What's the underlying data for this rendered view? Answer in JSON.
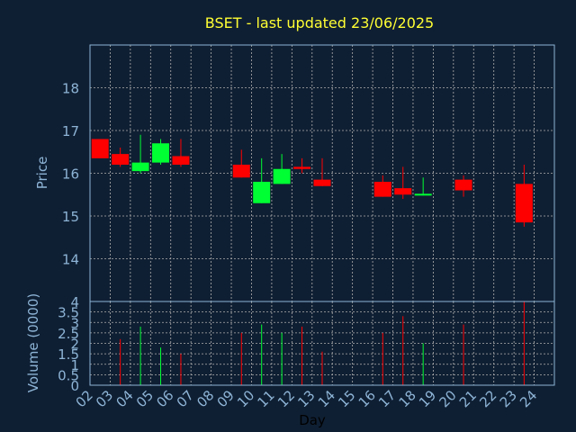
{
  "title": "BSET - last updated 23/06/2025",
  "colors": {
    "background": "#0f1f33",
    "title": "#ffff33",
    "axis_text": "#8db4d6",
    "axis_line": "#8db4d6",
    "grid": "#b0b0b0",
    "up": "#00ff33",
    "down": "#ff0000"
  },
  "chart_data": [
    {
      "type": "candlestick",
      "ylabel": "Price",
      "ylim": [
        13,
        19
      ],
      "yticks": [
        14,
        15,
        16,
        17,
        18
      ],
      "grid": true,
      "candles": [
        {
          "day": "02",
          "open": 16.8,
          "high": 16.8,
          "low": 16.35,
          "close": 16.35
        },
        {
          "day": "03",
          "open": 16.45,
          "high": 16.6,
          "low": 16.15,
          "close": 16.2
        },
        {
          "day": "04",
          "open": 16.05,
          "high": 16.9,
          "low": 16.0,
          "close": 16.25
        },
        {
          "day": "05",
          "open": 16.25,
          "high": 16.8,
          "low": 16.2,
          "close": 16.7
        },
        {
          "day": "06",
          "open": 16.4,
          "high": 16.8,
          "low": 16.15,
          "close": 16.2
        },
        {
          "day": "09",
          "open": 16.2,
          "high": 16.55,
          "low": 15.9,
          "close": 15.9
        },
        {
          "day": "10",
          "open": 15.3,
          "high": 16.35,
          "low": 15.3,
          "close": 15.8
        },
        {
          "day": "11",
          "open": 15.75,
          "high": 16.45,
          "low": 15.75,
          "close": 16.1
        },
        {
          "day": "12",
          "open": 16.15,
          "high": 16.35,
          "low": 16.0,
          "close": 16.1
        },
        {
          "day": "13",
          "open": 15.85,
          "high": 16.35,
          "low": 15.7,
          "close": 15.7
        },
        {
          "day": "16",
          "open": 15.8,
          "high": 15.95,
          "low": 15.45,
          "close": 15.45
        },
        {
          "day": "17",
          "open": 15.65,
          "high": 16.15,
          "low": 15.4,
          "close": 15.5
        },
        {
          "day": "18",
          "open": 15.5,
          "high": 15.9,
          "low": 15.48,
          "close": 15.52
        },
        {
          "day": "20",
          "open": 15.85,
          "high": 15.95,
          "low": 15.45,
          "close": 15.6
        },
        {
          "day": "23",
          "open": 15.75,
          "high": 16.2,
          "low": 14.75,
          "close": 14.85
        }
      ]
    },
    {
      "type": "bar",
      "ylabel": "Volume (0000)",
      "xlabel": "Day",
      "ylim": [
        0,
        4
      ],
      "yticks": [
        0,
        0.5,
        1,
        1.5,
        2,
        2.5,
        3,
        3.5,
        4
      ],
      "ytick_labels": [
        "0",
        "0.5",
        "1",
        "1.5",
        "2",
        "2.5",
        "3",
        "3.5",
        "4"
      ],
      "categories": [
        "02",
        "03",
        "04",
        "05",
        "06",
        "07",
        "08",
        "09",
        "10",
        "11",
        "12",
        "13",
        "14",
        "15",
        "16",
        "17",
        "18",
        "19",
        "20",
        "21",
        "22",
        "23",
        "24"
      ],
      "bars": [
        {
          "day": "03",
          "value": 2.2,
          "dir": "down"
        },
        {
          "day": "04",
          "value": 2.8,
          "dir": "up"
        },
        {
          "day": "05",
          "value": 1.8,
          "dir": "up"
        },
        {
          "day": "06",
          "value": 1.5,
          "dir": "down"
        },
        {
          "day": "09",
          "value": 2.5,
          "dir": "down"
        },
        {
          "day": "10",
          "value": 2.9,
          "dir": "up"
        },
        {
          "day": "11",
          "value": 2.5,
          "dir": "up"
        },
        {
          "day": "12",
          "value": 2.8,
          "dir": "down"
        },
        {
          "day": "13",
          "value": 1.6,
          "dir": "down"
        },
        {
          "day": "16",
          "value": 2.5,
          "dir": "down"
        },
        {
          "day": "17",
          "value": 3.3,
          "dir": "down"
        },
        {
          "day": "18",
          "value": 2.0,
          "dir": "up"
        },
        {
          "day": "20",
          "value": 2.9,
          "dir": "down"
        },
        {
          "day": "23",
          "value": 4.0,
          "dir": "down"
        }
      ]
    }
  ]
}
